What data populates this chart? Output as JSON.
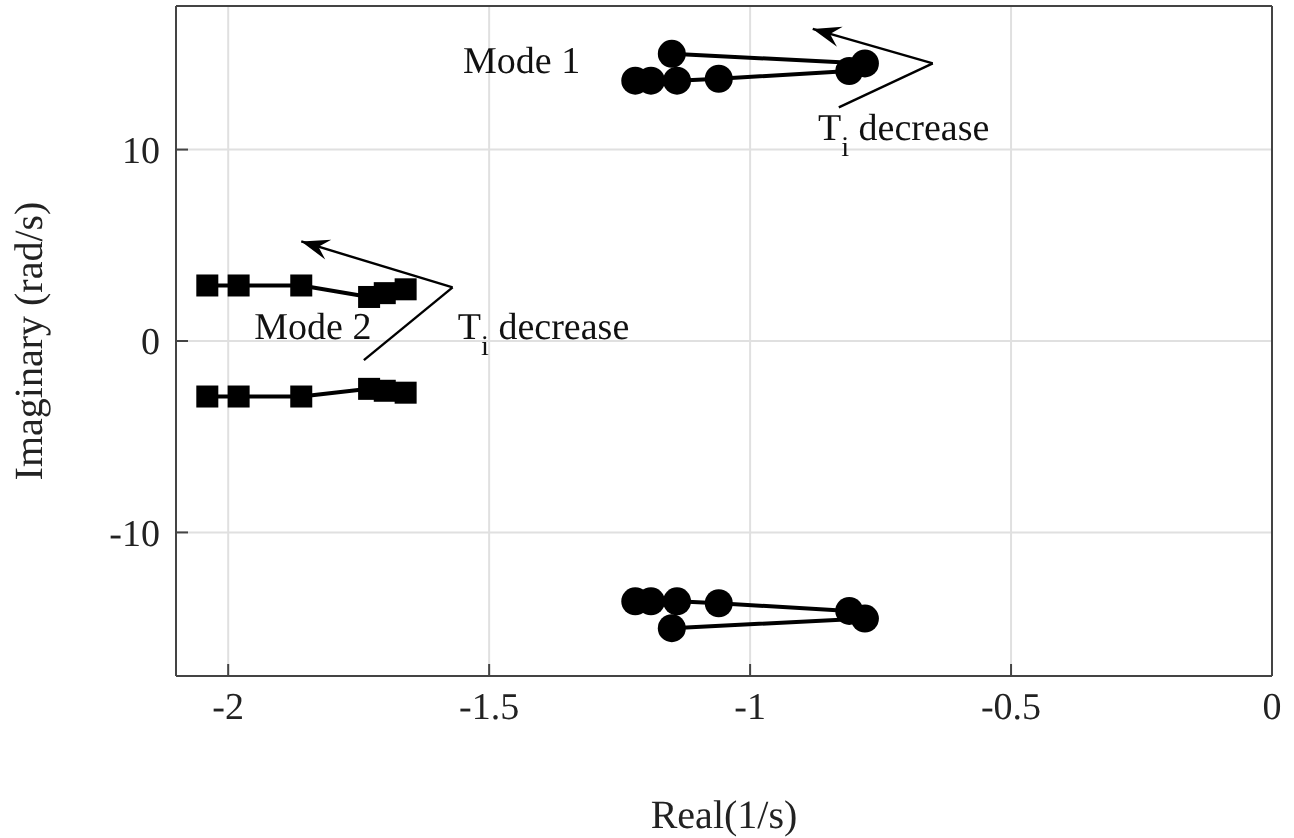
{
  "chart_data": {
    "type": "line",
    "xlabel": "Real(1/s)",
    "ylabel": "Imaginary (rad/s)",
    "xlim": [
      -2.1,
      0
    ],
    "ylim": [
      -17.5,
      17.5
    ],
    "xticks": [
      -2,
      -1.5,
      -1,
      -0.5,
      0
    ],
    "yticks": [
      -10,
      0,
      10
    ],
    "grid": true,
    "line_style": "solid",
    "annotations": [
      "Mode 1",
      "T$_{i}$ decrease",
      "Mode 2",
      "T$_{i}$ decrease"
    ],
    "series": [
      {
        "color": "#000000",
        "marker": "circle",
        "x": [
          -1.15,
          -0.78,
          -0.81,
          -1.06,
          -1.14,
          -1.19,
          -1.22
        ],
        "values": [
          15.0,
          14.5,
          14.1,
          13.7,
          13.6,
          13.6,
          13.6
        ]
      },
      {
        "color": "#000000",
        "marker": "circle",
        "x": [
          -1.15,
          -0.78,
          -0.81,
          -1.06,
          -1.14,
          -1.19,
          -1.22
        ],
        "values": [
          -15.0,
          -14.5,
          -14.1,
          -13.7,
          -13.6,
          -13.6,
          -13.6
        ]
      },
      {
        "color": "#000000",
        "marker": "square",
        "x": [
          -2.04,
          -1.98,
          -1.86,
          -1.73,
          -1.7,
          -1.66
        ],
        "values": [
          2.9,
          2.9,
          2.9,
          2.3,
          2.5,
          2.7
        ]
      },
      {
        "color": "#000000",
        "marker": "square",
        "x": [
          -2.04,
          -1.98,
          -1.86,
          -1.73,
          -1.7,
          -1.66
        ],
        "values": [
          -2.9,
          -2.9,
          -2.9,
          -2.5,
          -2.6,
          -2.7
        ]
      }
    ]
  }
}
